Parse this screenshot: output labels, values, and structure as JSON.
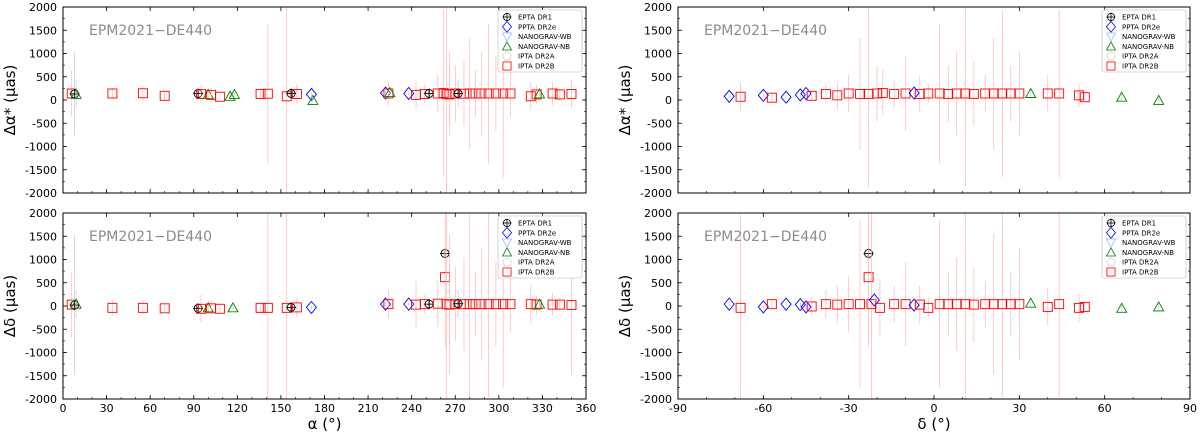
{
  "series_styles": [
    {
      "name": "EPTA DR1",
      "marker": "plus-circle",
      "color": "#000000"
    },
    {
      "name": "PPTA DR2e",
      "marker": "diamond",
      "color": "#0000ff"
    },
    {
      "name": "NANOGRAV-WB",
      "marker": "triangle-down",
      "color": "#a0b8ff"
    },
    {
      "name": "NANOGRAV-NB",
      "marker": "triangle",
      "color": "#008000"
    },
    {
      "name": "IPTA DR2A",
      "marker": "pentagon",
      "color": "#d3d3d3"
    },
    {
      "name": "IPTA DR2B",
      "marker": "square",
      "color": "#ff0000"
    }
  ],
  "chart_data": [
    {
      "type": "scatter",
      "annotation": "EPM2021−DE440",
      "xlabel": "",
      "ylabel": "Δα* (μas)",
      "xlim": [
        0,
        360
      ],
      "ylim": [
        -2000,
        2000
      ],
      "xticks": [],
      "yticks": [
        -2000,
        -1500,
        -1000,
        -500,
        0,
        500,
        1000,
        1500,
        2000
      ],
      "legend": "top-right",
      "points": [
        {
          "s": 5,
          "x": 6,
          "y": 140,
          "e": 500
        },
        {
          "s": 0,
          "x": 8,
          "y": 130,
          "e": 900
        },
        {
          "s": 3,
          "x": 9,
          "y": 120,
          "e": 300
        },
        {
          "s": 5,
          "x": 34,
          "y": 140,
          "e": 120
        },
        {
          "s": 5,
          "x": 55,
          "y": 145,
          "e": 150
        },
        {
          "s": 5,
          "x": 70,
          "y": 90,
          "e": 80
        },
        {
          "s": 0,
          "x": 93,
          "y": 140,
          "e": 60
        },
        {
          "s": 5,
          "x": 95,
          "y": 130,
          "e": 200
        },
        {
          "s": 3,
          "x": 100,
          "y": 120,
          "e": 90
        },
        {
          "s": 5,
          "x": 102,
          "y": 110,
          "e": 150
        },
        {
          "s": 5,
          "x": 108,
          "y": 70,
          "e": 40
        },
        {
          "s": 3,
          "x": 115,
          "y": 80,
          "e": 60
        },
        {
          "s": 3,
          "x": 118,
          "y": 120,
          "e": 50
        },
        {
          "s": 5,
          "x": 136,
          "y": 130,
          "e": 100
        },
        {
          "s": 5,
          "x": 141,
          "y": 135,
          "e": 1500
        },
        {
          "s": 5,
          "x": 154,
          "y": 80,
          "e": 2500
        },
        {
          "s": 0,
          "x": 157,
          "y": 140,
          "e": 100
        },
        {
          "s": 5,
          "x": 161,
          "y": 130,
          "e": 200
        },
        {
          "s": 1,
          "x": 171,
          "y": 120,
          "e": 40
        },
        {
          "s": 3,
          "x": 172,
          "y": -10,
          "e": 40
        },
        {
          "s": 1,
          "x": 222,
          "y": 150,
          "e": 40
        },
        {
          "s": 5,
          "x": 224,
          "y": 140,
          "e": 250
        },
        {
          "s": 3,
          "x": 225,
          "y": 160,
          "e": 40
        },
        {
          "s": 1,
          "x": 238,
          "y": 140,
          "e": 40
        },
        {
          "s": 5,
          "x": 243,
          "y": 110,
          "e": 300
        },
        {
          "s": 5,
          "x": 249,
          "y": 130,
          "e": 200
        },
        {
          "s": 0,
          "x": 252,
          "y": 140,
          "e": 100
        },
        {
          "s": 5,
          "x": 258,
          "y": 140,
          "e": 400
        },
        {
          "s": 5,
          "x": 262,
          "y": 150,
          "e": 1800
        },
        {
          "s": 5,
          "x": 264,
          "y": 130,
          "e": 2500
        },
        {
          "s": 5,
          "x": 266,
          "y": 120,
          "e": 900
        },
        {
          "s": 5,
          "x": 270,
          "y": 140,
          "e": 600
        },
        {
          "s": 0,
          "x": 272,
          "y": 140,
          "e": 300
        },
        {
          "s": 5,
          "x": 276,
          "y": 135,
          "e": 700
        },
        {
          "s": 5,
          "x": 280,
          "y": 140,
          "e": 1200
        },
        {
          "s": 5,
          "x": 284,
          "y": 140,
          "e": 500
        },
        {
          "s": 5,
          "x": 288,
          "y": 140,
          "e": 900
        },
        {
          "s": 5,
          "x": 293,
          "y": 140,
          "e": 1500
        },
        {
          "s": 5,
          "x": 298,
          "y": 140,
          "e": 800
        },
        {
          "s": 5,
          "x": 303,
          "y": 140,
          "e": 1800
        },
        {
          "s": 5,
          "x": 308,
          "y": 140,
          "e": 500
        },
        {
          "s": 5,
          "x": 322,
          "y": 80,
          "e": 300
        },
        {
          "s": 5,
          "x": 326,
          "y": 120,
          "e": 200
        },
        {
          "s": 3,
          "x": 328,
          "y": 130,
          "e": 60
        },
        {
          "s": 5,
          "x": 337,
          "y": 140,
          "e": 250
        },
        {
          "s": 5,
          "x": 342,
          "y": 120,
          "e": 150
        },
        {
          "s": 5,
          "x": 350,
          "y": 130,
          "e": 300
        }
      ]
    },
    {
      "type": "scatter",
      "annotation": "EPM2021−DE440",
      "xlabel": "",
      "ylabel": "Δα* (μas)",
      "xlim": [
        -90,
        90
      ],
      "ylim": [
        -2000,
        2000
      ],
      "xticks": [],
      "yticks": [
        -2000,
        -1500,
        -1000,
        -500,
        0,
        500,
        1000,
        1500,
        2000
      ],
      "legend": "top-right",
      "points": [
        {
          "s": 1,
          "x": -72,
          "y": 80,
          "e": 40
        },
        {
          "s": 5,
          "x": -68,
          "y": 70,
          "e": 300
        },
        {
          "s": 1,
          "x": -60,
          "y": 100,
          "e": 40
        },
        {
          "s": 5,
          "x": -57,
          "y": 50,
          "e": 80
        },
        {
          "s": 1,
          "x": -52,
          "y": 60,
          "e": 40
        },
        {
          "s": 1,
          "x": -47,
          "y": 110,
          "e": 40
        },
        {
          "s": 1,
          "x": -45,
          "y": 140,
          "e": 40
        },
        {
          "s": 5,
          "x": -43,
          "y": 90,
          "e": 100
        },
        {
          "s": 5,
          "x": -38,
          "y": 130,
          "e": 200
        },
        {
          "s": 5,
          "x": -34,
          "y": 100,
          "e": 300
        },
        {
          "s": 5,
          "x": -30,
          "y": 140,
          "e": 400
        },
        {
          "s": 5,
          "x": -26,
          "y": 130,
          "e": 1200
        },
        {
          "s": 5,
          "x": -23,
          "y": 130,
          "e": 2000
        },
        {
          "s": 5,
          "x": -20,
          "y": 140,
          "e": 600
        },
        {
          "s": 5,
          "x": -18,
          "y": 150,
          "e": 500
        },
        {
          "s": 5,
          "x": -14,
          "y": 130,
          "e": 300
        },
        {
          "s": 5,
          "x": -10,
          "y": 140,
          "e": 800
        },
        {
          "s": 1,
          "x": -7,
          "y": 150,
          "e": 40
        },
        {
          "s": 5,
          "x": -5,
          "y": 130,
          "e": 400
        },
        {
          "s": 5,
          "x": -2,
          "y": 140,
          "e": 200
        },
        {
          "s": 5,
          "x": 2,
          "y": 140,
          "e": 1500
        },
        {
          "s": 5,
          "x": 5,
          "y": 130,
          "e": 600
        },
        {
          "s": 5,
          "x": 8,
          "y": 140,
          "e": 900
        },
        {
          "s": 5,
          "x": 11,
          "y": 140,
          "e": 2000
        },
        {
          "s": 5,
          "x": 14,
          "y": 130,
          "e": 700
        },
        {
          "s": 5,
          "x": 18,
          "y": 140,
          "e": 400
        },
        {
          "s": 5,
          "x": 21,
          "y": 140,
          "e": 1200
        },
        {
          "s": 5,
          "x": 24,
          "y": 140,
          "e": 1800
        },
        {
          "s": 5,
          "x": 27,
          "y": 140,
          "e": 600
        },
        {
          "s": 5,
          "x": 30,
          "y": 140,
          "e": 900
        },
        {
          "s": 3,
          "x": 34,
          "y": 140,
          "e": 60
        },
        {
          "s": 5,
          "x": 40,
          "y": 140,
          "e": 400
        },
        {
          "s": 5,
          "x": 44,
          "y": 140,
          "e": 1800
        },
        {
          "s": 5,
          "x": 51,
          "y": 100,
          "e": 250
        },
        {
          "s": 5,
          "x": 53,
          "y": 60,
          "e": 100
        },
        {
          "s": 3,
          "x": 66,
          "y": 60,
          "e": 60
        },
        {
          "s": 3,
          "x": 79,
          "y": -10,
          "e": 60
        }
      ]
    },
    {
      "type": "scatter",
      "annotation": "EPM2021−DE440",
      "xlabel": "α (°)",
      "ylabel": "Δδ (μas)",
      "xlim": [
        0,
        360
      ],
      "ylim": [
        -2000,
        2000
      ],
      "xticks": [
        0,
        30,
        60,
        90,
        120,
        150,
        180,
        210,
        240,
        270,
        300,
        330,
        360
      ],
      "yticks": [
        -2000,
        -1500,
        -1000,
        -500,
        0,
        500,
        1000,
        1500,
        2000
      ],
      "legend": "top-right",
      "points": [
        {
          "s": 5,
          "x": 6,
          "y": 30,
          "e": 700
        },
        {
          "s": 0,
          "x": 8,
          "y": 20,
          "e": 1500
        },
        {
          "s": 3,
          "x": 9,
          "y": 40,
          "e": 300
        },
        {
          "s": 5,
          "x": 34,
          "y": -40,
          "e": 150
        },
        {
          "s": 5,
          "x": 55,
          "y": -40,
          "e": 150
        },
        {
          "s": 5,
          "x": 70,
          "y": -50,
          "e": 80
        },
        {
          "s": 0,
          "x": 93,
          "y": -50,
          "e": 60
        },
        {
          "s": 5,
          "x": 95,
          "y": -60,
          "e": 300
        },
        {
          "s": 3,
          "x": 100,
          "y": -40,
          "e": 90
        },
        {
          "s": 5,
          "x": 102,
          "y": -50,
          "e": 150
        },
        {
          "s": 5,
          "x": 108,
          "y": -60,
          "e": 60
        },
        {
          "s": 3,
          "x": 117,
          "y": -40,
          "e": 60
        },
        {
          "s": 5,
          "x": 136,
          "y": -40,
          "e": 100
        },
        {
          "s": 5,
          "x": 141,
          "y": -40,
          "e": 2500
        },
        {
          "s": 5,
          "x": 154,
          "y": -40,
          "e": 2500
        },
        {
          "s": 0,
          "x": 157,
          "y": -30,
          "e": 100
        },
        {
          "s": 5,
          "x": 161,
          "y": -30,
          "e": 200
        },
        {
          "s": 1,
          "x": 171,
          "y": -30,
          "e": 40
        },
        {
          "s": 1,
          "x": 222,
          "y": 40,
          "e": 40
        },
        {
          "s": 5,
          "x": 224,
          "y": 40,
          "e": 300
        },
        {
          "s": 1,
          "x": 238,
          "y": 40,
          "e": 40
        },
        {
          "s": 5,
          "x": 243,
          "y": 30,
          "e": 500
        },
        {
          "s": 5,
          "x": 249,
          "y": 40,
          "e": 200
        },
        {
          "s": 0,
          "x": 252,
          "y": 40,
          "e": 100
        },
        {
          "s": 5,
          "x": 258,
          "y": 50,
          "e": 500
        },
        {
          "s": 0,
          "x": 263,
          "y": 1130,
          "e": 80
        },
        {
          "s": 5,
          "x": 263,
          "y": 620,
          "e": 1500
        },
        {
          "s": 5,
          "x": 264,
          "y": 40,
          "e": 2500
        },
        {
          "s": 5,
          "x": 266,
          "y": 30,
          "e": 1500
        },
        {
          "s": 5,
          "x": 270,
          "y": 40,
          "e": 800
        },
        {
          "s": 0,
          "x": 272,
          "y": 50,
          "e": 300
        },
        {
          "s": 5,
          "x": 276,
          "y": 40,
          "e": 1000
        },
        {
          "s": 5,
          "x": 280,
          "y": 40,
          "e": 2000
        },
        {
          "s": 5,
          "x": 284,
          "y": 40,
          "e": 700
        },
        {
          "s": 5,
          "x": 288,
          "y": 40,
          "e": 1200
        },
        {
          "s": 5,
          "x": 293,
          "y": 40,
          "e": 2000
        },
        {
          "s": 5,
          "x": 298,
          "y": 40,
          "e": 900
        },
        {
          "s": 5,
          "x": 303,
          "y": 40,
          "e": 1800
        },
        {
          "s": 5,
          "x": 308,
          "y": 40,
          "e": 600
        },
        {
          "s": 5,
          "x": 322,
          "y": 40,
          "e": 400
        },
        {
          "s": 5,
          "x": 326,
          "y": 30,
          "e": 200
        },
        {
          "s": 3,
          "x": 328,
          "y": 40,
          "e": 60
        },
        {
          "s": 5,
          "x": 337,
          "y": 30,
          "e": 250
        },
        {
          "s": 5,
          "x": 342,
          "y": 30,
          "e": 150
        },
        {
          "s": 5,
          "x": 350,
          "y": 20,
          "e": 1500
        }
      ]
    },
    {
      "type": "scatter",
      "annotation": "EPM2021−DE440",
      "xlabel": "δ (°)",
      "ylabel": "Δδ (μas)",
      "xlim": [
        -90,
        90
      ],
      "ylim": [
        -2000,
        2000
      ],
      "xticks": [
        -90,
        -60,
        -30,
        0,
        30,
        60,
        90
      ],
      "yticks": [
        -2000,
        -1500,
        -1000,
        -500,
        0,
        500,
        1000,
        1500,
        2000
      ],
      "legend": "top-right",
      "points": [
        {
          "s": 1,
          "x": -72,
          "y": 40,
          "e": 40
        },
        {
          "s": 5,
          "x": -68,
          "y": -40,
          "e": 2000
        },
        {
          "s": 1,
          "x": -60,
          "y": -20,
          "e": 40
        },
        {
          "s": 5,
          "x": -57,
          "y": 40,
          "e": 80
        },
        {
          "s": 1,
          "x": -52,
          "y": 40,
          "e": 40
        },
        {
          "s": 1,
          "x": -47,
          "y": 30,
          "e": 40
        },
        {
          "s": 1,
          "x": -45,
          "y": -20,
          "e": 40
        },
        {
          "s": 5,
          "x": -43,
          "y": -10,
          "e": 200
        },
        {
          "s": 5,
          "x": -38,
          "y": 40,
          "e": 300
        },
        {
          "s": 5,
          "x": -34,
          "y": 30,
          "e": 400
        },
        {
          "s": 5,
          "x": -30,
          "y": 40,
          "e": 600
        },
        {
          "s": 5,
          "x": -26,
          "y": 40,
          "e": 1800
        },
        {
          "s": 0,
          "x": -23,
          "y": 1130,
          "e": 80
        },
        {
          "s": 5,
          "x": -23,
          "y": 620,
          "e": 1500
        },
        {
          "s": 5,
          "x": -22,
          "y": 40,
          "e": 2500
        },
        {
          "s": 1,
          "x": -21,
          "y": 130,
          "e": 40
        },
        {
          "s": 5,
          "x": -19,
          "y": -40,
          "e": 600
        },
        {
          "s": 5,
          "x": -14,
          "y": 40,
          "e": 400
        },
        {
          "s": 5,
          "x": -10,
          "y": 40,
          "e": 900
        },
        {
          "s": 1,
          "x": -7,
          "y": 20,
          "e": 40
        },
        {
          "s": 5,
          "x": -5,
          "y": 30,
          "e": 400
        },
        {
          "s": 5,
          "x": -2,
          "y": -40,
          "e": 200
        },
        {
          "s": 5,
          "x": 2,
          "y": 40,
          "e": 1800
        },
        {
          "s": 5,
          "x": 5,
          "y": 40,
          "e": 700
        },
        {
          "s": 5,
          "x": 8,
          "y": 40,
          "e": 1000
        },
        {
          "s": 5,
          "x": 11,
          "y": 40,
          "e": 2500
        },
        {
          "s": 5,
          "x": 14,
          "y": 30,
          "e": 800
        },
        {
          "s": 5,
          "x": 18,
          "y": 40,
          "e": 500
        },
        {
          "s": 5,
          "x": 21,
          "y": 40,
          "e": 1500
        },
        {
          "s": 5,
          "x": 24,
          "y": 40,
          "e": 2000
        },
        {
          "s": 5,
          "x": 27,
          "y": 40,
          "e": 700
        },
        {
          "s": 5,
          "x": 30,
          "y": 40,
          "e": 1200
        },
        {
          "s": 3,
          "x": 34,
          "y": 60,
          "e": 60
        },
        {
          "s": 5,
          "x": 40,
          "y": -20,
          "e": 400
        },
        {
          "s": 5,
          "x": 44,
          "y": 40,
          "e": 2000
        },
        {
          "s": 5,
          "x": 51,
          "y": -40,
          "e": 300
        },
        {
          "s": 5,
          "x": 53,
          "y": -20,
          "e": 100
        },
        {
          "s": 3,
          "x": 66,
          "y": -50,
          "e": 60
        },
        {
          "s": 3,
          "x": 79,
          "y": -20,
          "e": 60
        }
      ]
    }
  ]
}
